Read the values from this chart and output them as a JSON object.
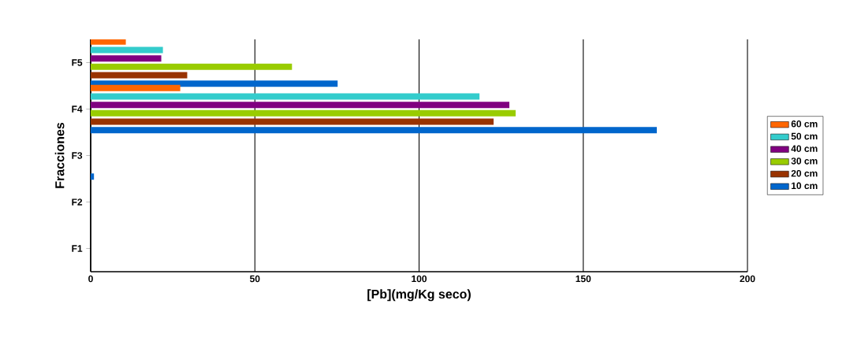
{
  "chart_data": {
    "type": "bar",
    "orientation": "horizontal",
    "xlabel": "[Pb](mg/Kg seco)",
    "ylabel": "Fracciones",
    "categories": [
      "F5",
      "F4",
      "F3",
      "F2",
      "F1"
    ],
    "series": [
      {
        "name": "10 cm",
        "color": "#0066cc",
        "values": [
          75.2,
          172.4,
          1,
          0,
          0
        ]
      },
      {
        "name": "20 cm",
        "color": "#993300",
        "values": [
          29.4,
          122.7,
          0,
          0,
          0
        ]
      },
      {
        "name": "30 cm",
        "color": "#99cc00",
        "values": [
          61.3,
          129.4,
          0,
          0,
          0
        ]
      },
      {
        "name": "40 cm",
        "color": "#800080",
        "values": [
          21.5,
          127.5,
          0,
          0,
          0
        ]
      },
      {
        "name": "50 cm",
        "color": "#33cccc",
        "values": [
          22,
          118.4,
          0,
          0,
          0
        ]
      },
      {
        "name": "60 cm",
        "color": "#ff6600",
        "values": [
          10.7,
          27.3,
          0,
          0,
          0
        ]
      }
    ],
    "xlim": [
      0,
      200
    ],
    "xticks": [
      0,
      50,
      100,
      150,
      200
    ],
    "grid": "x",
    "legend": "right"
  }
}
